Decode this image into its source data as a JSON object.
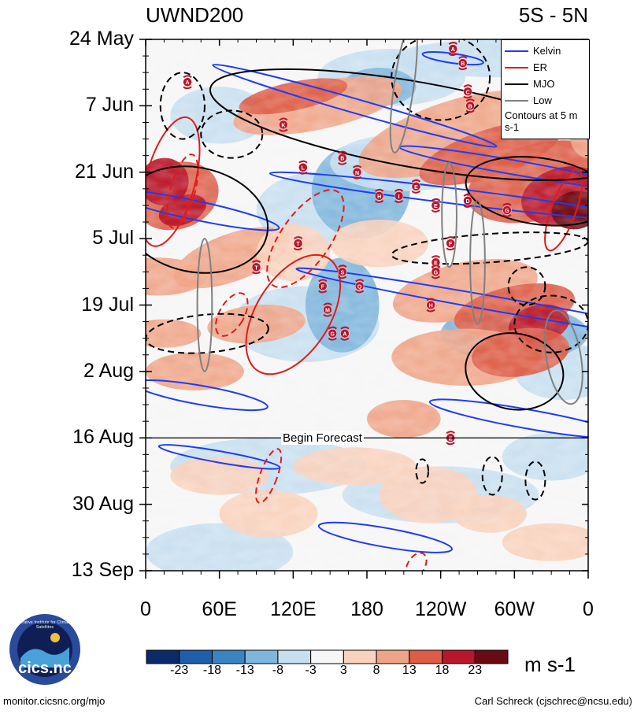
{
  "chart_data": {
    "type": "heatmap",
    "title_left": "UWND200",
    "title_right": "5S - 5N",
    "y_tick_labels": [
      "24 May",
      "7 Jun",
      "21 Jun",
      "5 Jul",
      "19 Jul",
      "2 Aug",
      "16 Aug",
      "30 Aug",
      "13 Sep"
    ],
    "x_tick_labels": [
      "0",
      "60E",
      "120E",
      "180",
      "120W",
      "60W",
      "0"
    ],
    "x_range_deg_east": [
      0,
      360
    ],
    "time_axis_days": {
      "start": "24 May",
      "end": "13 Sep",
      "total_days": 112
    },
    "forecast_start_day": 84,
    "forecast_label": "Begin Forecast",
    "units": "m s-1",
    "colorbar_levels": [
      "-23",
      "-18",
      "-13",
      "-8",
      "-3",
      "3",
      "8",
      "13",
      "18",
      "23"
    ],
    "colorbar_colors": [
      "#0b2a6a",
      "#1f5ea8",
      "#3b84c2",
      "#7fb6db",
      "#c6dff0",
      "#f6f6f6",
      "#f9d2bd",
      "#f0a487",
      "#dd5d48",
      "#b8162a",
      "#6a0a14"
    ],
    "legend": [
      {
        "name": "Kelvin",
        "color": "#1e3cf5"
      },
      {
        "name": "ER",
        "color": "#e01b1b"
      },
      {
        "name": "MJO",
        "color": "#000000"
      },
      {
        "name": "Low",
        "color": "#808080"
      }
    ],
    "contour_note": "Contours at 5 m s-1",
    "tropical_cyclones": [
      {
        "label": "A",
        "lon": 250,
        "day": 2
      },
      {
        "label": "B",
        "lon": 258,
        "day": 5
      },
      {
        "label": "A",
        "lon": 34,
        "day": 9
      },
      {
        "label": "C",
        "lon": 262,
        "day": 11
      },
      {
        "label": "B",
        "lon": 264,
        "day": 14
      },
      {
        "label": "K",
        "lon": 112,
        "day": 18
      },
      {
        "label": "B",
        "lon": 160,
        "day": 25
      },
      {
        "label": "L",
        "lon": 128,
        "day": 27
      },
      {
        "label": "N",
        "lon": 172,
        "day": 28
      },
      {
        "label": "E",
        "lon": 220,
        "day": 31
      },
      {
        "label": "H",
        "lon": 190,
        "day": 33
      },
      {
        "label": "I",
        "lon": 206,
        "day": 33
      },
      {
        "label": "D",
        "lon": 262,
        "day": 34
      },
      {
        "label": "E",
        "lon": 236,
        "day": 35
      },
      {
        "label": "G",
        "lon": 294,
        "day": 36
      },
      {
        "label": "T",
        "lon": 124,
        "day": 43
      },
      {
        "label": "F",
        "lon": 248,
        "day": 43
      },
      {
        "label": "E",
        "lon": 236,
        "day": 47
      },
      {
        "label": "T",
        "lon": 90,
        "day": 48
      },
      {
        "label": "G",
        "lon": 236,
        "day": 49
      },
      {
        "label": "S",
        "lon": 160,
        "day": 49
      },
      {
        "label": "F",
        "lon": 144,
        "day": 52
      },
      {
        "label": "Q",
        "lon": 174,
        "day": 52
      },
      {
        "label": "H",
        "lon": 232,
        "day": 56
      },
      {
        "label": "M",
        "lon": 148,
        "day": 57
      },
      {
        "label": "G",
        "lon": 152,
        "day": 62
      },
      {
        "label": "A",
        "lon": 162,
        "day": 62
      },
      {
        "label": "E",
        "lon": 248,
        "day": 84
      }
    ]
  },
  "colorbar_unit": "m s-1",
  "logo_text": "cics.nc",
  "logo_ring_text": "Cooperative Institute for Climate and Satellites",
  "footer_left": "monitor.cicsnc.org/mjo",
  "footer_right": "Carl Schreck (cjschrec@ncsu.edu)"
}
